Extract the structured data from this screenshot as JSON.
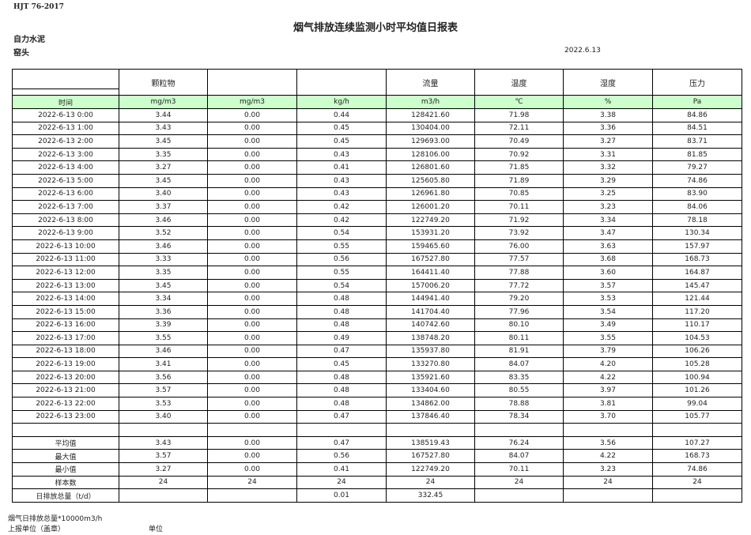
{
  "standard": "HJT  76-2017",
  "title": "烟气排放连续监测小时平均值日报表",
  "company": "自力水泥",
  "unit": "窑头",
  "date": "2022.6.13",
  "headers": [
    "",
    "颗粒物",
    "",
    "",
    "流量",
    "温度",
    "湿度",
    "压力"
  ],
  "units": [
    "时间",
    "mg/m3",
    "mg/m3",
    "kg/h",
    "m3/h",
    "℃",
    "%",
    "Pa"
  ],
  "rows": [
    [
      "2022-6-13 0:00",
      "3.44",
      "0.00",
      "0.44",
      "128421.60",
      "71.98",
      "3.38",
      "84.86"
    ],
    [
      "2022-6-13 1:00",
      "3.43",
      "0.00",
      "0.45",
      "130404.00",
      "72.11",
      "3.36",
      "84.51"
    ],
    [
      "2022-6-13 2:00",
      "3.45",
      "0.00",
      "0.45",
      "129693.00",
      "70.49",
      "3.27",
      "83.71"
    ],
    [
      "2022-6-13 3:00",
      "3.35",
      "0.00",
      "0.43",
      "128106.00",
      "70.92",
      "3.31",
      "81.85"
    ],
    [
      "2022-6-13 4:00",
      "3.27",
      "0.00",
      "0.41",
      "126801.60",
      "71.85",
      "3.32",
      "79.27"
    ],
    [
      "2022-6-13 5:00",
      "3.45",
      "0.00",
      "0.43",
      "125605.80",
      "71.89",
      "3.29",
      "74.86"
    ],
    [
      "2022-6-13 6:00",
      "3.40",
      "0.00",
      "0.43",
      "126961.80",
      "70.85",
      "3.25",
      "83.90"
    ],
    [
      "2022-6-13 7:00",
      "3.37",
      "0.00",
      "0.42",
      "126001.20",
      "70.11",
      "3.23",
      "84.06"
    ],
    [
      "2022-6-13 8:00",
      "3.46",
      "0.00",
      "0.42",
      "122749.20",
      "71.92",
      "3.34",
      "78.18"
    ],
    [
      "2022-6-13 9:00",
      "3.52",
      "0.00",
      "0.54",
      "153931.20",
      "73.92",
      "3.47",
      "130.34"
    ],
    [
      "2022-6-13 10:00",
      "3.46",
      "0.00",
      "0.55",
      "159465.60",
      "76.00",
      "3.63",
      "157.97"
    ],
    [
      "2022-6-13 11:00",
      "3.33",
      "0.00",
      "0.56",
      "167527.80",
      "77.57",
      "3.68",
      "168.73"
    ],
    [
      "2022-6-13 12:00",
      "3.35",
      "0.00",
      "0.55",
      "164411.40",
      "77.88",
      "3.60",
      "164.87"
    ],
    [
      "2022-6-13 13:00",
      "3.45",
      "0.00",
      "0.54",
      "157006.20",
      "77.72",
      "3.57",
      "145.47"
    ],
    [
      "2022-6-13 14:00",
      "3.34",
      "0.00",
      "0.48",
      "144941.40",
      "79.20",
      "3.53",
      "121.44"
    ],
    [
      "2022-6-13 15:00",
      "3.36",
      "0.00",
      "0.48",
      "141704.40",
      "77.96",
      "3.54",
      "117.20"
    ],
    [
      "2022-6-13 16:00",
      "3.39",
      "0.00",
      "0.48",
      "140742.60",
      "80.10",
      "3.49",
      "110.17"
    ],
    [
      "2022-6-13 17:00",
      "3.55",
      "0.00",
      "0.49",
      "138748.20",
      "80.11",
      "3.55",
      "104.53"
    ],
    [
      "2022-6-13 18:00",
      "3.46",
      "0.00",
      "0.47",
      "135937.80",
      "81.91",
      "3.79",
      "106.26"
    ],
    [
      "2022-6-13 19:00",
      "3.41",
      "0.00",
      "0.45",
      "133270.80",
      "84.07",
      "4.20",
      "105.28"
    ],
    [
      "2022-6-13 20:00",
      "3.56",
      "0.00",
      "0.48",
      "135921.60",
      "83.35",
      "4.22",
      "100.94"
    ],
    [
      "2022-6-13 21:00",
      "3.57",
      "0.00",
      "0.48",
      "133404.60",
      "80.55",
      "3.97",
      "101.26"
    ],
    [
      "2022-6-13 22:00",
      "3.53",
      "0.00",
      "0.48",
      "134862.00",
      "78.88",
      "3.81",
      "99.04"
    ],
    [
      "2022-6-13 23:00",
      "3.40",
      "0.00",
      "0.47",
      "137846.40",
      "78.34",
      "3.70",
      "105.77"
    ]
  ],
  "summary": [
    [
      "平均值",
      "3.43",
      "0.00",
      "0.47",
      "138519.43",
      "76.24",
      "3.56",
      "107.27"
    ],
    [
      "最大值",
      "3.57",
      "0.00",
      "0.56",
      "167527.80",
      "84.07",
      "4.22",
      "168.73"
    ],
    [
      "最小值",
      "3.27",
      "0.00",
      "0.41",
      "122749.20",
      "70.11",
      "3.23",
      "74.86"
    ],
    [
      "样本数",
      "24",
      "24",
      "24",
      "24",
      "24",
      "24",
      "24"
    ],
    [
      "日排放总量（t/d）",
      "",
      "",
      "0.01",
      "332.45",
      "",
      "",
      ""
    ]
  ],
  "notes": {
    "line1": "烟气日排放总量*10000m3/h",
    "line2a": "上报单位（盖章）",
    "line2b": "单位"
  }
}
